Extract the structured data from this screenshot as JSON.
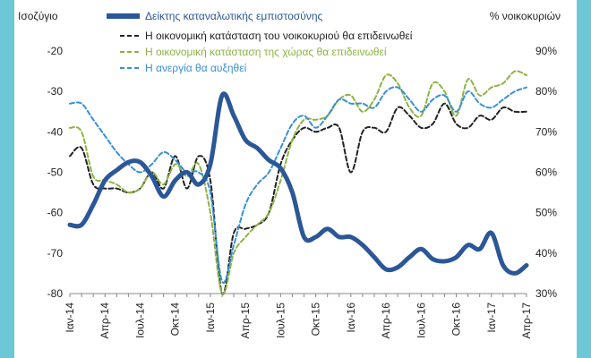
{
  "chart_data": {
    "type": "line",
    "left_axis_title": "Ισοζύγιο",
    "right_axis_title": "% νοικοκυριών",
    "y_left": {
      "min": -80,
      "max": -20,
      "ticks": [
        -20,
        -30,
        -40,
        -50,
        -60,
        -70,
        -80
      ]
    },
    "y_right": {
      "min": 30,
      "max": 90,
      "ticks": [
        "90%",
        "80%",
        "70%",
        "60%",
        "50%",
        "40%",
        "30%"
      ]
    },
    "x_start_index": 0,
    "x_end_index": 39,
    "x_tick_labels": [
      {
        "i": 0,
        "label": "Ιαν-14"
      },
      {
        "i": 3,
        "label": "Απρ-14"
      },
      {
        "i": 6,
        "label": "Ιουλ-14"
      },
      {
        "i": 9,
        "label": "Οκτ-14"
      },
      {
        "i": 12,
        "label": "Ιαν-15"
      },
      {
        "i": 15,
        "label": "Απρ-15"
      },
      {
        "i": 18,
        "label": "Ιουλ-15"
      },
      {
        "i": 21,
        "label": "Οκτ-15"
      },
      {
        "i": 24,
        "label": "Ιαν-16"
      },
      {
        "i": 27,
        "label": "Απρ-16"
      },
      {
        "i": 30,
        "label": "Ιουλ-16"
      },
      {
        "i": 33,
        "label": "Οκτ-16"
      },
      {
        "i": 36,
        "label": "Ιαν-17"
      },
      {
        "i": 39,
        "label": "Απρ-17"
      }
    ],
    "legend": "top",
    "series": [
      {
        "name": "Δείκτης καταναλωτικής εμπιστοσύνης",
        "axis": "left",
        "color": "#2b5797",
        "style": "solid",
        "width": 5,
        "values": [
          -63,
          -63,
          -58,
          -52,
          -49.5,
          -47.5,
          -47.5,
          -51,
          -56,
          -52,
          -50,
          -53,
          -48,
          -31,
          -36,
          -42,
          -44,
          -47,
          -49,
          -55,
          -66,
          -66,
          -64,
          -66,
          -66,
          -68,
          -71,
          -74,
          -73.5,
          -71,
          -69,
          -71.5,
          -72,
          -71,
          -68,
          -69,
          -65,
          -73,
          -75,
          -73
        ]
      },
      {
        "name": "Η οικονομική κατάσταση του νοικοκυριού θα επιδεινωθεί",
        "axis": "right",
        "color": "#222222",
        "style": "dashed",
        "width": 2,
        "values": [
          64,
          66,
          57,
          56,
          56,
          55,
          56,
          60,
          56,
          64,
          56,
          64,
          58,
          30,
          45,
          46,
          47,
          50,
          62,
          68,
          71,
          70,
          71,
          71,
          60,
          70,
          71,
          70,
          76,
          74,
          71,
          72,
          77,
          72,
          71,
          74,
          73,
          76,
          75,
          75
        ]
      },
      {
        "name": "Η οικονομική κατάσταση της χώρας θα επιδεινωθεί",
        "axis": "right",
        "color": "#8db443",
        "style": "dashed",
        "width": 2,
        "values": [
          71,
          70,
          59,
          58,
          57,
          55,
          56,
          60,
          57,
          62,
          59,
          62,
          50,
          30,
          40,
          44,
          47,
          50,
          58,
          68,
          73,
          73,
          74,
          78,
          79,
          75,
          78,
          84,
          82,
          76,
          74,
          82,
          80,
          74,
          83,
          79,
          81,
          82,
          85,
          84
        ]
      },
      {
        "name": "Η ανεργία θα αυξηθεί",
        "axis": "right",
        "color": "#3a8fd6",
        "style": "dashed",
        "width": 2,
        "values": [
          77,
          77,
          73,
          69,
          65,
          62,
          60,
          62,
          65,
          63,
          60,
          60,
          55,
          33,
          42,
          52,
          57,
          60,
          66,
          72,
          74,
          71,
          74,
          78,
          77,
          77,
          76,
          80,
          81,
          78,
          75,
          78,
          79,
          75,
          80,
          77,
          76,
          78,
          80,
          81
        ]
      }
    ]
  }
}
